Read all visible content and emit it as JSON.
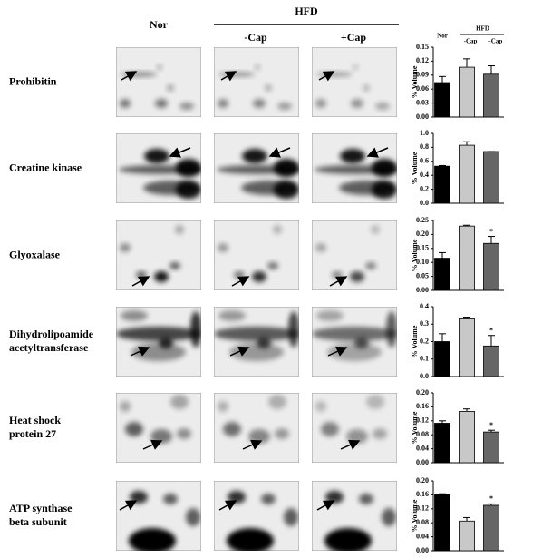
{
  "header": {
    "group": "HFD",
    "columns": [
      "Nor",
      "-Cap",
      "+Cap"
    ]
  },
  "chart_data": [
    {
      "type": "bar",
      "title": [
        "Prohibitin"
      ],
      "y_label": "% Volume",
      "group_label": "HFD",
      "categories": [
        "Nor",
        "-Cap",
        "+Cap"
      ],
      "colors": [
        "#000000",
        "#c8c8c8",
        "#666666"
      ],
      "values": [
        0.074,
        0.107,
        0.092
      ],
      "errors": [
        0.013,
        0.018,
        0.018
      ],
      "annotations": [
        null,
        null,
        null
      ],
      "ylim": [
        0,
        0.15
      ],
      "yticks": [
        {
          "value": 0,
          "label": "0.00"
        },
        {
          "value": 0.03,
          "label": "0.03"
        },
        {
          "value": 0.06,
          "label": "0.06"
        },
        {
          "value": 0.09,
          "label": "0.09"
        },
        {
          "value": 0.12,
          "label": "0.12"
        },
        {
          "value": 0.15,
          "label": "0.15"
        }
      ]
    },
    {
      "type": "bar",
      "title": [
        "Creatine kinase"
      ],
      "y_label": "% Volume",
      "categories": [
        null,
        null,
        null
      ],
      "colors": [
        "#000000",
        "#c8c8c8",
        "#666666"
      ],
      "values": [
        0.53,
        0.83,
        0.74
      ],
      "errors": [
        0.01,
        0.05,
        0
      ],
      "annotations": [
        null,
        null,
        null
      ],
      "ylim": [
        0,
        1.0
      ],
      "yticks": [
        {
          "value": 0,
          "label": "0.0"
        },
        {
          "value": 0.2,
          "label": "0.2"
        },
        {
          "value": 0.4,
          "label": "0.4"
        },
        {
          "value": 0.6,
          "label": "0.6"
        },
        {
          "value": 0.8,
          "label": "0.8"
        },
        {
          "value": 1.0,
          "label": "1.0"
        }
      ]
    },
    {
      "type": "bar",
      "title": [
        "Glyoxalase"
      ],
      "y_label": "% Volume",
      "categories": [
        null,
        null,
        null
      ],
      "colors": [
        "#000000",
        "#c8c8c8",
        "#666666"
      ],
      "values": [
        0.115,
        0.23,
        0.168
      ],
      "errors": [
        0.02,
        0.003,
        0.025
      ],
      "annotations": [
        null,
        null,
        "*"
      ],
      "ylim": [
        0,
        0.25
      ],
      "yticks": [
        {
          "value": 0,
          "label": "0.00"
        },
        {
          "value": 0.05,
          "label": "0.05"
        },
        {
          "value": 0.1,
          "label": "0.10"
        },
        {
          "value": 0.15,
          "label": "0.15"
        },
        {
          "value": 0.2,
          "label": "0.20"
        },
        {
          "value": 0.25,
          "label": "0.25"
        }
      ]
    },
    {
      "type": "bar",
      "title": [
        "Dihydrolipoamide",
        "acetyltransferase"
      ],
      "y_label": "% Volume",
      "categories": [
        null,
        null,
        null
      ],
      "colors": [
        "#000000",
        "#c8c8c8",
        "#666666"
      ],
      "values": [
        0.2,
        0.33,
        0.175
      ],
      "errors": [
        0.045,
        0.01,
        0.06
      ],
      "annotations": [
        null,
        null,
        "*"
      ],
      "ylim": [
        0,
        0.4
      ],
      "yticks": [
        {
          "value": 0,
          "label": "0.0"
        },
        0.1,
        0.2,
        0.3,
        0.4
      ]
    },
    {
      "type": "bar",
      "title": [
        "Heat shock",
        "protein 27"
      ],
      "y_label": "% Volume",
      "categories": [
        null,
        null,
        null
      ],
      "colors": [
        "#000000",
        "#c8c8c8",
        "#666666"
      ],
      "values": [
        0.113,
        0.147,
        0.088
      ],
      "errors": [
        0.007,
        0.007,
        0.005
      ],
      "annotations": [
        null,
        null,
        "*"
      ],
      "ylim": [
        0,
        0.2
      ],
      "yticks": [
        {
          "value": 0,
          "label": "0.00"
        },
        {
          "value": 0.04,
          "label": "0.04"
        },
        {
          "value": 0.08,
          "label": "0.08"
        },
        {
          "value": 0.12,
          "label": "0.12"
        },
        {
          "value": 0.16,
          "label": "0.16"
        },
        {
          "value": 0.2,
          "label": "0.20"
        }
      ]
    },
    {
      "type": "bar",
      "title": [
        "ATP synthase",
        "beta subunit"
      ],
      "y_label": "% Volume",
      "categories": [
        null,
        null,
        null
      ],
      "colors": [
        "#000000",
        "#c8c8c8",
        "#666666"
      ],
      "values": [
        0.16,
        0.085,
        0.13
      ],
      "errors": [
        0.003,
        0.01,
        0.004
      ],
      "annotations": [
        null,
        null,
        "*"
      ],
      "ylim": [
        0,
        0.2
      ],
      "yticks": [
        {
          "value": 0,
          "label": "0.00"
        },
        {
          "value": 0.04,
          "label": "0.04"
        },
        {
          "value": 0.08,
          "label": "0.08"
        },
        {
          "value": 0.12,
          "label": "0.12"
        },
        {
          "value": 0.16,
          "label": "0.16"
        },
        {
          "value": 0.2,
          "label": "0.20"
        }
      ]
    }
  ]
}
